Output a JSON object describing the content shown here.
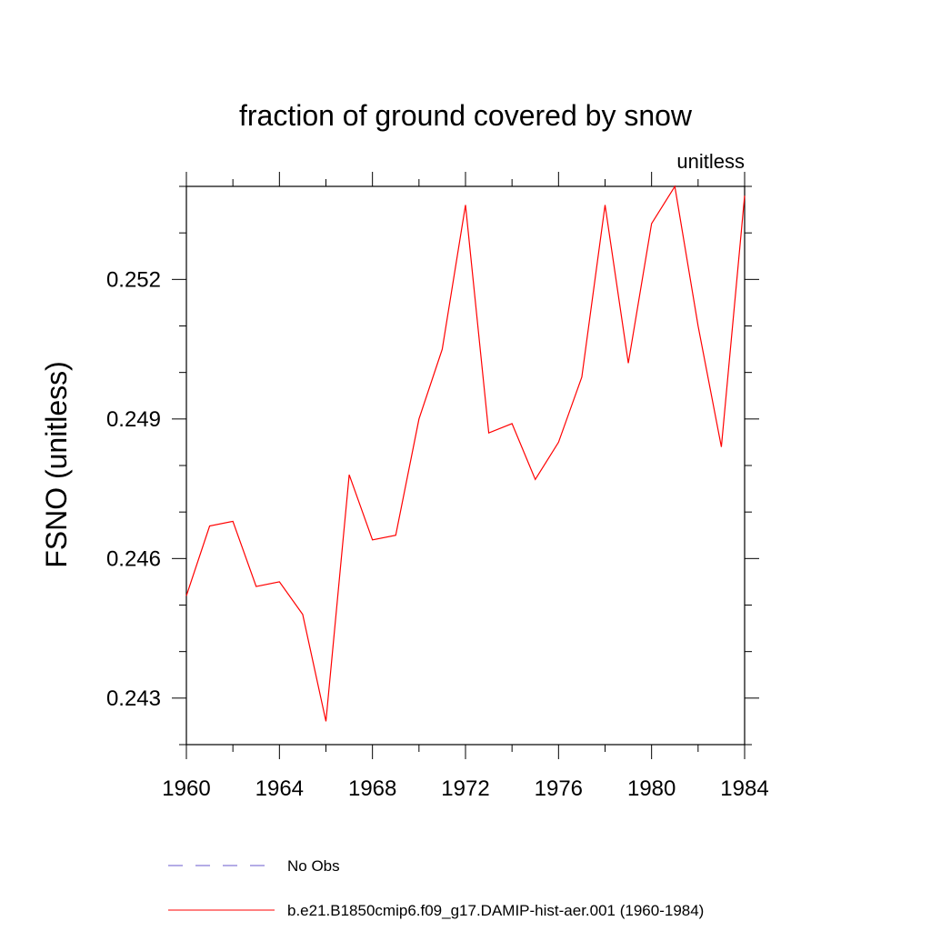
{
  "chart_data": {
    "type": "line",
    "title": "fraction of ground covered by snow",
    "units_label": "unitless",
    "ylabel": "FSNO  (unitless)",
    "xlabel": "",
    "xlim": [
      1960,
      1984
    ],
    "ylim": [
      0.242,
      0.254
    ],
    "x_ticks": [
      1960,
      1964,
      1968,
      1972,
      1976,
      1980,
      1984
    ],
    "x_tick_labels": [
      "1960",
      "1964",
      "1968",
      "1972",
      "1976",
      "1980",
      "1984"
    ],
    "y_ticks": [
      0.243,
      0.246,
      0.249,
      0.252
    ],
    "y_tick_labels": [
      "0.243",
      "0.246",
      "0.249",
      "0.252"
    ],
    "grid": false,
    "legend_position": "bottom",
    "series": [
      {
        "name": "No Obs",
        "color": "#6a5acd",
        "style": "dashed",
        "x": [],
        "values": []
      },
      {
        "name": "b.e21.B1850cmip6.f09_g17.DAMIP-hist-aer.001 (1960-1984)",
        "color": "#ff0000",
        "style": "solid",
        "x": [
          1960,
          1961,
          1962,
          1963,
          1964,
          1965,
          1966,
          1967,
          1968,
          1969,
          1970,
          1971,
          1972,
          1973,
          1974,
          1975,
          1976,
          1977,
          1978,
          1979,
          1980,
          1981,
          1982,
          1983,
          1984
        ],
        "values": [
          0.2452,
          0.2467,
          0.2468,
          0.2454,
          0.2455,
          0.2448,
          0.2425,
          0.2478,
          0.2464,
          0.2465,
          0.249,
          0.2505,
          0.2536,
          0.2487,
          0.2489,
          0.2477,
          0.2485,
          0.2499,
          0.2536,
          0.2502,
          0.2532,
          0.254,
          0.251,
          0.2484,
          0.2538
        ]
      }
    ]
  }
}
